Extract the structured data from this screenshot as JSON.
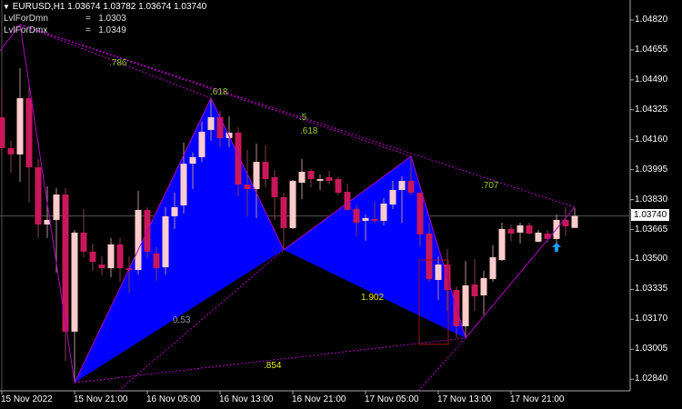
{
  "header": {
    "symbol": "EURUSD,H1",
    "open": "1.03674",
    "high": "1.03782",
    "low": "1.03674",
    "close": "1.03740",
    "arrow": "▼"
  },
  "indicators": [
    {
      "name": "LvlForDmn",
      "sep": "=",
      "value": "1.0303"
    },
    {
      "name": "LvlForDmx",
      "sep": "=",
      "value": "1.0349"
    }
  ],
  "colors": {
    "background": "#000000",
    "bull": "#ffcccc",
    "bear": "#c8185a",
    "pattern_fill": "#0000ff",
    "pattern_line": "#b000c0",
    "fib_label": "#9acd32",
    "ratio_label": "#e6e600",
    "arrow": "#1e9bff"
  },
  "chart_data": {
    "type": "candlestick",
    "title": "EURUSD,H1",
    "ylim": [
      1.0272,
      1.0492
    ],
    "y_ticks": [
      "1.04820",
      "1.04655",
      "1.04490",
      "1.04325",
      "1.04160",
      "1.03995",
      "1.03830",
      "1.03665",
      "1.03500",
      "1.03335",
      "1.03170",
      "1.03005",
      "1.02840"
    ],
    "x_ticks": [
      {
        "time": "15 Nov 13:00",
        "label": "15 Nov 2022"
      },
      {
        "time": "15 Nov 21:00",
        "label": "15 Nov 21:00"
      },
      {
        "time": "16 Nov 05:00",
        "label": "16 Nov 05:00"
      },
      {
        "time": "16 Nov 13:00",
        "label": "16 Nov 13:00"
      },
      {
        "time": "16 Nov 21:00",
        "label": "16 Nov 21:00"
      },
      {
        "time": "17 Nov 05:00",
        "label": "17 Nov 05:00"
      },
      {
        "time": "17 Nov 13:00",
        "label": "17 Nov 13:00"
      },
      {
        "time": "17 Nov 21:00",
        "label": "17 Nov 21:00"
      }
    ],
    "current_price": "1.03740",
    "grid": false,
    "time": [
      "15 Nov 13:00",
      "15 Nov 14:00",
      "15 Nov 15:00",
      "15 Nov 16:00",
      "15 Nov 17:00",
      "15 Nov 18:00",
      "15 Nov 19:00",
      "15 Nov 20:00",
      "15 Nov 21:00",
      "15 Nov 22:00",
      "15 Nov 23:00",
      "16 Nov 00:00",
      "16 Nov 01:00",
      "16 Nov 02:00",
      "16 Nov 03:00",
      "16 Nov 04:00",
      "16 Nov 05:00",
      "16 Nov 06:00",
      "16 Nov 07:00",
      "16 Nov 08:00",
      "16 Nov 09:00",
      "16 Nov 10:00",
      "16 Nov 11:00",
      "16 Nov 12:00",
      "16 Nov 13:00",
      "16 Nov 14:00",
      "16 Nov 15:00",
      "16 Nov 16:00",
      "16 Nov 17:00",
      "16 Nov 18:00",
      "16 Nov 19:00",
      "16 Nov 20:00",
      "16 Nov 21:00",
      "16 Nov 22:00",
      "16 Nov 23:00",
      "17 Nov 00:00",
      "17 Nov 01:00",
      "17 Nov 02:00",
      "17 Nov 03:00",
      "17 Nov 04:00",
      "17 Nov 05:00",
      "17 Nov 06:00",
      "17 Nov 07:00",
      "17 Nov 08:00",
      "17 Nov 09:00",
      "17 Nov 10:00",
      "17 Nov 11:00",
      "17 Nov 12:00",
      "17 Nov 13:00",
      "17 Nov 14:00",
      "17 Nov 15:00",
      "17 Nov 16:00",
      "17 Nov 17:00",
      "17 Nov 18:00",
      "17 Nov 19:00",
      "17 Nov 20:00",
      "17 Nov 21:00",
      "17 Nov 22:00",
      "17 Nov 23:00",
      "18 Nov 00:00",
      "18 Nov 01:00",
      "18 Nov 02:00",
      "18 Nov 03:00",
      "18 Nov 04:00"
    ],
    "ohlc": [
      [
        1.04284,
        1.04454,
        1.04079,
        1.04114
      ],
      [
        1.04114,
        1.04154,
        1.03978,
        1.04079
      ],
      [
        1.04079,
        1.04554,
        1.03928,
        1.04389
      ],
      [
        1.04389,
        1.04454,
        1.03813,
        1.04008
      ],
      [
        1.04008,
        1.04054,
        1.03618,
        1.03693
      ],
      [
        1.03693,
        1.03903,
        1.03618,
        1.03718
      ],
      [
        1.03718,
        1.03893,
        1.03427,
        1.03858
      ],
      [
        1.03858,
        1.03893,
        1.02941,
        1.03102
      ],
      [
        1.03102,
        1.03663,
        1.02821,
        1.03648
      ],
      [
        1.03648,
        1.03778,
        1.03512,
        1.03543
      ],
      [
        1.03543,
        1.03588,
        1.03437,
        1.03487
      ],
      [
        1.03472,
        1.03517,
        1.03412,
        1.03452
      ],
      [
        1.03452,
        1.03618,
        1.03402,
        1.03583
      ],
      [
        1.03583,
        1.03618,
        1.03377,
        1.03452
      ],
      [
        1.03452,
        1.03517,
        1.03317,
        1.03442
      ],
      [
        1.03442,
        1.03878,
        1.03417,
        1.03773
      ],
      [
        1.03773,
        1.03788,
        1.03507,
        1.03543
      ],
      [
        1.03533,
        1.03568,
        1.03382,
        1.03452
      ],
      [
        1.03457,
        1.03788,
        1.03417,
        1.03738
      ],
      [
        1.03738,
        1.03868,
        1.03668,
        1.03788
      ],
      [
        1.03798,
        1.04144,
        1.03753,
        1.04028
      ],
      [
        1.04028,
        1.04089,
        1.03888,
        1.04064
      ],
      [
        1.04064,
        1.04259,
        1.04038,
        1.04204
      ],
      [
        1.04214,
        1.04379,
        1.04154,
        1.04284
      ],
      [
        1.04284,
        1.04319,
        1.04119,
        1.04169
      ],
      [
        1.04169,
        1.04289,
        1.04119,
        1.04199
      ],
      [
        1.04199,
        1.04229,
        1.03848,
        1.03913
      ],
      [
        1.03913,
        1.04104,
        1.03738,
        1.03888
      ],
      [
        1.03888,
        1.04139,
        1.03728,
        1.04038
      ],
      [
        1.04038,
        1.04129,
        1.03898,
        1.03943
      ],
      [
        1.03953,
        1.03993,
        1.03718,
        1.03843
      ],
      [
        1.03843,
        1.03868,
        1.03553,
        1.03673
      ],
      [
        1.03673,
        1.03938,
        1.03668,
        1.03933
      ],
      [
        1.03923,
        1.04054,
        1.03833,
        1.03983
      ],
      [
        1.03988,
        1.03998,
        1.03898,
        1.03943
      ],
      [
        1.03933,
        1.03968,
        1.03883,
        1.03943
      ],
      [
        1.03953,
        1.03988,
        1.03913,
        1.03933
      ],
      [
        1.03943,
        1.03953,
        1.03853,
        1.03868
      ],
      [
        1.03873,
        1.03918,
        1.03773,
        1.03773
      ],
      [
        1.03778,
        1.03803,
        1.03628,
        1.03703
      ],
      [
        1.03713,
        1.03748,
        1.03603,
        1.03728
      ],
      [
        1.03723,
        1.03818,
        1.03703,
        1.03713
      ],
      [
        1.03713,
        1.03838,
        1.03688,
        1.03808
      ],
      [
        1.03803,
        1.03933,
        1.03778,
        1.03883
      ],
      [
        1.03883,
        1.03958,
        1.03703,
        1.03933
      ],
      [
        1.03933,
        1.04069,
        1.03853,
        1.03868
      ],
      [
        1.03868,
        1.03868,
        1.03573,
        1.03638
      ],
      [
        1.03643,
        1.03703,
        1.03377,
        1.03392
      ],
      [
        1.03387,
        1.03517,
        1.03277,
        1.03472
      ],
      [
        1.03472,
        1.03558,
        1.03217,
        1.03332
      ],
      [
        1.03332,
        1.03352,
        1.03067,
        1.03132
      ],
      [
        1.03132,
        1.03492,
        1.03067,
        1.03357
      ],
      [
        1.03362,
        1.03502,
        1.03217,
        1.03297
      ],
      [
        1.03302,
        1.03437,
        1.03197,
        1.03397
      ],
      [
        1.03392,
        1.03578,
        1.03377,
        1.03512
      ],
      [
        1.03497,
        1.03703,
        1.03492,
        1.03668
      ],
      [
        1.03668,
        1.03693,
        1.03598,
        1.03643
      ],
      [
        1.03648,
        1.03703,
        1.03588,
        1.03688
      ],
      [
        1.03688,
        1.03703,
        1.03638,
        1.03643
      ],
      [
        1.03598,
        1.03663,
        1.03593,
        1.03648
      ],
      [
        1.03643,
        1.03663,
        1.03593,
        1.03613
      ],
      [
        1.03613,
        1.03748,
        1.03578,
        1.03718
      ],
      [
        1.03718,
        1.03788,
        1.03628,
        1.03683
      ],
      [
        1.03674,
        1.03782,
        1.03674,
        1.0374
      ]
    ],
    "pattern": {
      "points": [
        {
          "name": "X",
          "time": "15 Nov 21:00",
          "price": 1.02821
        },
        {
          "name": "A",
          "time": "16 Nov 12:00",
          "price": 1.04389
        },
        {
          "name": "B",
          "time": "16 Nov 20:00",
          "price": 1.03553
        },
        {
          "name": "C",
          "time": "17 Nov 10:00",
          "price": 1.04069
        },
        {
          "name": "D",
          "time": "17 Nov 16:00",
          "price": 1.03067
        }
      ],
      "prior_peak": {
        "time": "15 Nov 15:00",
        "price": 1.04795
      },
      "current_leg_end": {
        "time": "18 Nov 04:00",
        "price": 1.03788
      },
      "fib_labels": [
        ".786",
        ".618",
        ".5",
        ".618",
        ".707"
      ],
      "ratio_labels": [
        "1.902",
        ".854"
      ],
      "grey_label": "0.53",
      "prz_box": {
        "time_from": "17 Nov 11:00",
        "time_to": "17 Nov 14:00",
        "price_top": 1.03497,
        "price_bottom": 1.03032
      }
    },
    "signal": {
      "type": "buy-arrow",
      "time": "18 Nov 02:00",
      "price": 1.03593
    }
  }
}
